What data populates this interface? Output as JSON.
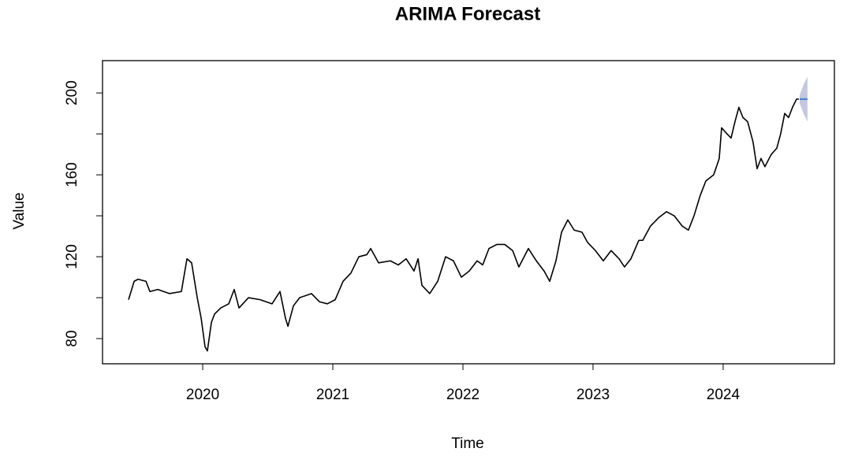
{
  "chart_data": {
    "type": "line",
    "title": "ARIMA Forecast",
    "x_label": "Time",
    "y_label": "Value",
    "xlim": [
      2019.23,
      2024.855
    ],
    "ylim": [
      67.7,
      215.8
    ],
    "xticks": [
      2020,
      2021,
      2022,
      2023,
      2024
    ],
    "yticks": [
      80,
      120,
      160,
      200
    ],
    "yminor": [
      100,
      140,
      180
    ],
    "series": [
      {
        "color": "#000000",
        "x": [
          2019.43,
          2019.473,
          2019.503,
          2019.564,
          2019.594,
          2019.655,
          2019.745,
          2019.836,
          2019.879,
          2019.915,
          2019.958,
          2019.988,
          2020.018,
          2020.036,
          2020.067,
          2020.091,
          2020.139,
          2020.2,
          2020.242,
          2020.279,
          2020.352,
          2020.442,
          2020.533,
          2020.594,
          2020.636,
          2020.655,
          2020.697,
          2020.745,
          2020.836,
          2020.897,
          2020.958,
          2021.018,
          2021.079,
          2021.139,
          2021.2,
          2021.261,
          2021.291,
          2021.352,
          2021.442,
          2021.503,
          2021.564,
          2021.624,
          2021.655,
          2021.685,
          2021.745,
          2021.806,
          2021.867,
          2021.927,
          2021.988,
          2022.048,
          2022.109,
          2022.152,
          2022.2,
          2022.261,
          2022.321,
          2022.382,
          2022.43,
          2022.503,
          2022.564,
          2022.624,
          2022.667,
          2022.715,
          2022.758,
          2022.806,
          2022.855,
          2022.915,
          2022.958,
          2023.018,
          2023.079,
          2023.139,
          2023.2,
          2023.242,
          2023.291,
          2023.352,
          2023.382,
          2023.442,
          2023.503,
          2023.564,
          2023.624,
          2023.685,
          2023.733,
          2023.776,
          2023.824,
          2023.867,
          2023.927,
          2023.97,
          2023.988,
          2024.03,
          2024.061,
          2024.091,
          2024.121,
          2024.152,
          2024.188,
          2024.23,
          2024.261,
          2024.291,
          2024.321,
          2024.37,
          2024.412,
          2024.442,
          2024.473,
          2024.503,
          2024.533,
          2024.564,
          2024.582
        ],
        "values": [
          99,
          108,
          109,
          108,
          103,
          104,
          102,
          103,
          119,
          117,
          100,
          90,
          76,
          74,
          88,
          92,
          95,
          97,
          104,
          95,
          100,
          99,
          97,
          103,
          90,
          86,
          96,
          100,
          102,
          98,
          97,
          99,
          108,
          112,
          120,
          121,
          124,
          117,
          118,
          116,
          119,
          113,
          119,
          106,
          102,
          108,
          120,
          118,
          110,
          113,
          118,
          116,
          124,
          126,
          126,
          123,
          115,
          124,
          118,
          113,
          108,
          118,
          132,
          138,
          133,
          132,
          127,
          123,
          118,
          123,
          119,
          115,
          119,
          128,
          128,
          135,
          139,
          142,
          140,
          135,
          133,
          140,
          150,
          157,
          160,
          168,
          183,
          180,
          178,
          186,
          193,
          188,
          186,
          176,
          163,
          168,
          164,
          170,
          173,
          180,
          190,
          188,
          193,
          197,
          197
        ]
      },
      {
        "color": "#4a7fd6",
        "band_color": "#b4bad8",
        "x": [
          2024.588,
          2024.618,
          2024.648
        ],
        "values": [
          197,
          197,
          197
        ],
        "lower": [
          195,
          190,
          186
        ],
        "upper": [
          199,
          204,
          208
        ]
      }
    ]
  }
}
